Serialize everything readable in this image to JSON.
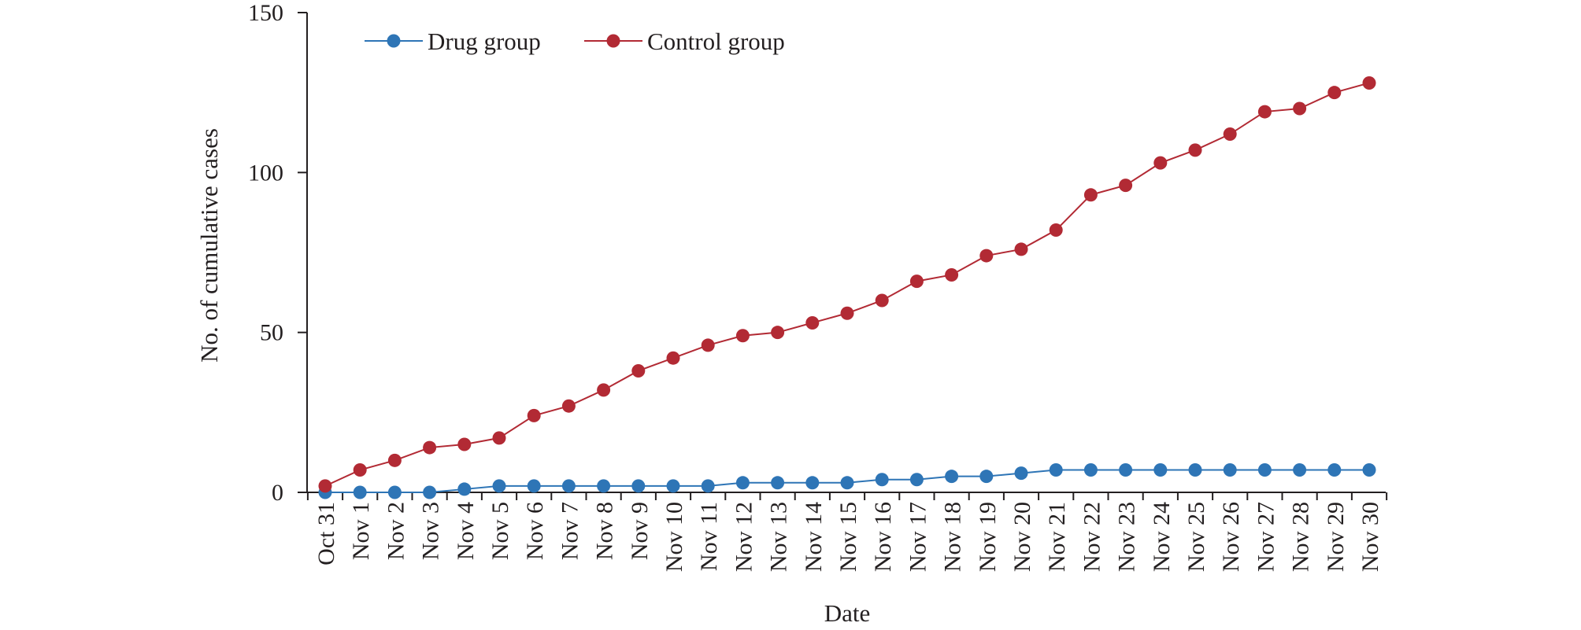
{
  "chart_data": {
    "type": "line",
    "xlabel": "Date",
    "ylabel": "No. of cumulative cases",
    "ylim": [
      0,
      150
    ],
    "yticks": [
      0,
      50,
      100,
      150
    ],
    "grid": false,
    "legend_position": "top-left",
    "categories": [
      "Oct 31",
      "Nov 1",
      "Nov 2",
      "Nov 3",
      "Nov 4",
      "Nov 5",
      "Nov 6",
      "Nov 7",
      "Nov 8",
      "Nov 9",
      "Nov 10",
      "Nov 11",
      "Nov 12",
      "Nov 13",
      "Nov 14",
      "Nov 15",
      "Nov 16",
      "Nov 17",
      "Nov 18",
      "Nov 19",
      "Nov 20",
      "Nov 21",
      "Nov 22",
      "Nov 23",
      "Nov 24",
      "Nov 25",
      "Nov 26",
      "Nov 27",
      "Nov 28",
      "Nov 29",
      "Nov 30"
    ],
    "series": [
      {
        "name": "Drug group",
        "color": "#2e75b6",
        "values": [
          0,
          0,
          0,
          0,
          1,
          2,
          2,
          2,
          2,
          2,
          2,
          2,
          3,
          3,
          3,
          3,
          4,
          4,
          5,
          5,
          6,
          7,
          7,
          7,
          7,
          7,
          7,
          7,
          7,
          7,
          7
        ]
      },
      {
        "name": "Control group",
        "color": "#b22a34",
        "values": [
          2,
          7,
          10,
          14,
          15,
          17,
          24,
          27,
          32,
          38,
          42,
          46,
          49,
          50,
          53,
          56,
          60,
          66,
          68,
          74,
          76,
          82,
          93,
          96,
          103,
          107,
          112,
          119,
          120,
          125,
          128
        ]
      }
    ]
  }
}
